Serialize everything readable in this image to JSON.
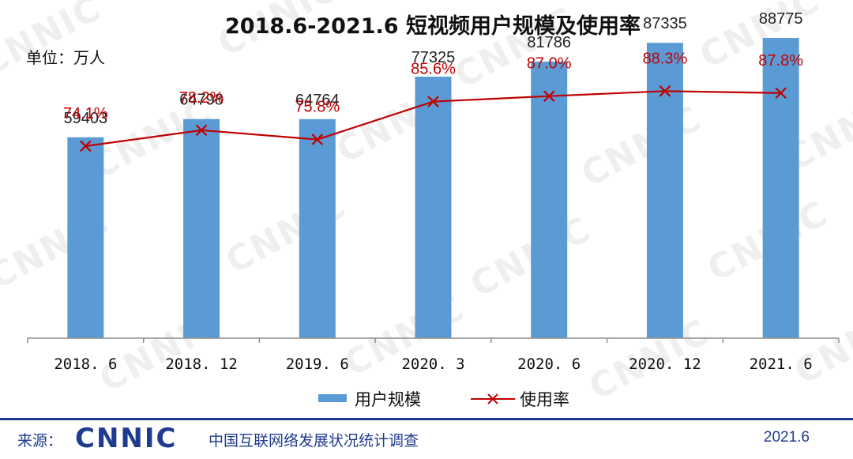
{
  "chart_data": {
    "type": "bar",
    "title": "2018.6-2021.6 短视频用户规模及使用率",
    "unit_label": "单位：万人",
    "categories": [
      "2018. 6",
      "2018. 12",
      "2019. 6",
      "2020. 3",
      "2020. 6",
      "2020. 12",
      "2021. 6"
    ],
    "series": [
      {
        "name": "用户规模",
        "type": "bar",
        "values": [
          59403,
          64798,
          64764,
          77325,
          81786,
          87335,
          88775
        ],
        "labels": [
          "59403",
          "64798",
          "64764",
          "77325",
          "81786",
          "87335",
          "88775"
        ],
        "color": "#5b9bd5"
      },
      {
        "name": "使用率",
        "type": "line",
        "marker": "x",
        "values": [
          74.1,
          78.2,
          75.8,
          85.6,
          87.0,
          88.3,
          87.8
        ],
        "labels": [
          "74.1%",
          "78.2%",
          "75.8%",
          "85.6%",
          "87.0%",
          "88.3%",
          "87.8%"
        ],
        "color": "#c00000"
      }
    ],
    "bar_ylim": [
      0,
      100000
    ],
    "rate_ylim": [
      0,
      100
    ],
    "legend_position": "bottom-center",
    "grid": false
  },
  "watermark": "CNNIC",
  "footer": {
    "source_label": "来源：",
    "logo_text": "CNNIC",
    "org_name": "中国互联网络发展状况统计调查",
    "date": "2021.6"
  }
}
